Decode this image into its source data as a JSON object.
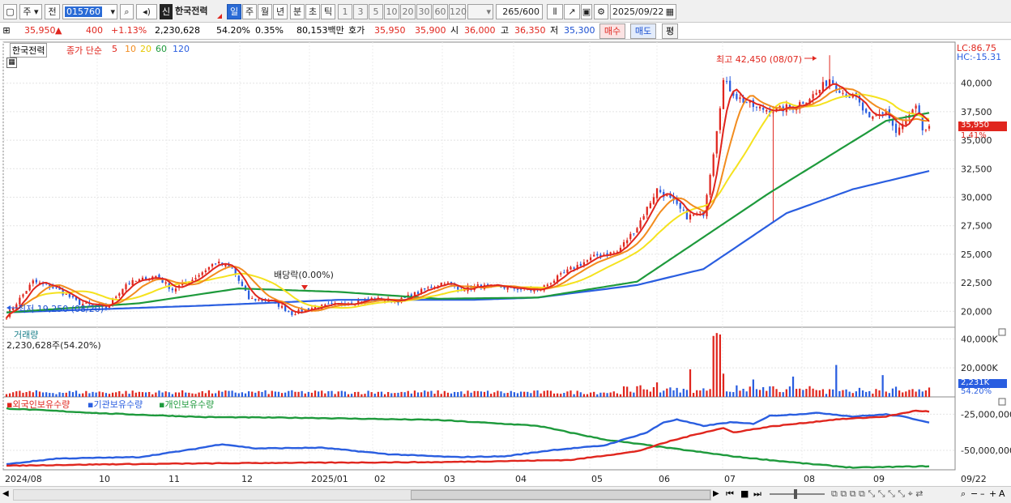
{
  "toolbar": {
    "market_type": "주",
    "prev_label": "전",
    "stock_code": "015760",
    "badge": "신",
    "stock_name": "한국전력",
    "period_buttons": [
      "일",
      "주",
      "월",
      "년",
      "분",
      "초",
      "틱"
    ],
    "interval_buttons": [
      "1",
      "3",
      "5",
      "10",
      "20",
      "30",
      "60",
      "120"
    ],
    "count": "265",
    "count_total": "/600",
    "date": "2025/09/22"
  },
  "quote": {
    "price": "35,950",
    "change": "400",
    "change_pct": "+1.13%",
    "volume": "2,230,628",
    "volume_ratio": "54.20%",
    "turnover": "0.35%",
    "amount": "80,153백만",
    "ask_label": "호가",
    "ask": "35,950",
    "bid": "35,900",
    "open_label": "시",
    "open": "36,000",
    "high_label": "고",
    "high": "36,350",
    "low_label": "저",
    "low": "35,300",
    "buy_button": "매수",
    "sell_button": "매도",
    "avg_button": "평"
  },
  "chart": {
    "legend_name": "한국전력",
    "legend_ma": "종가 단순",
    "ma_periods": [
      "5",
      "10",
      "20",
      "60",
      "120"
    ],
    "lc_label": "LC:86.75",
    "hc_label": "HC:-15.31",
    "current_price_tag": "35,950",
    "current_pct_tag": "1.41%",
    "max_annotation": "최고 42,450 (08/07)",
    "min_annotation": "최저 19,250 (08/20)",
    "dividend_annotation": "배당락(0.00%)",
    "volume_title": "거래량",
    "volume_info": "2,230,628주(54.20%)",
    "volume_tag": "2,231K",
    "volume_pct_tag": "54.20%",
    "holding_legend": [
      "외국인보유수량",
      "기관보유수량",
      "개인보유수량"
    ],
    "colors": {
      "ma5": "#e0261e",
      "ma10": "#f28c1e",
      "ma20": "#f5e21e",
      "ma60": "#1e9a3c",
      "ma120": "#2a5ee0",
      "up": "#e0261e",
      "down": "#2a5ee0"
    }
  },
  "chart_data": {
    "type": "line",
    "price_axis_ticks": [
      "40,000",
      "37,500",
      "35,000",
      "32,500",
      "30,000",
      "27,500",
      "25,000",
      "22,500",
      "20,000"
    ],
    "price_ylim": [
      18600,
      43600
    ],
    "volume_axis_ticks": [
      "40,000K",
      "20,000K"
    ],
    "volume_ylim": [
      0,
      48000
    ],
    "holding_axis_ticks": [
      "-25,000,000",
      "-50,000,000"
    ],
    "x_labels": [
      "2024/08",
      "10",
      "11",
      "12",
      "2025/01",
      "02",
      "03",
      "04",
      "05",
      "06",
      "07",
      "08",
      "09",
      "09/22"
    ],
    "close_anchors": [
      [
        0,
        19600
      ],
      [
        8,
        22600
      ],
      [
        15,
        22000
      ],
      [
        22,
        20700
      ],
      [
        30,
        20300
      ],
      [
        36,
        22400
      ],
      [
        45,
        23100
      ],
      [
        50,
        21900
      ],
      [
        56,
        22800
      ],
      [
        63,
        24300
      ],
      [
        68,
        23700
      ],
      [
        73,
        21100
      ],
      [
        80,
        20900
      ],
      [
        86,
        19800
      ],
      [
        92,
        20300
      ],
      [
        100,
        20600
      ],
      [
        110,
        21100
      ],
      [
        118,
        20900
      ],
      [
        126,
        21900
      ],
      [
        132,
        22600
      ],
      [
        136,
        21900
      ],
      [
        142,
        22200
      ],
      [
        150,
        22100
      ],
      [
        160,
        21800
      ],
      [
        170,
        23700
      ],
      [
        178,
        24900
      ],
      [
        184,
        25200
      ],
      [
        190,
        27400
      ],
      [
        196,
        30700
      ],
      [
        200,
        29800
      ],
      [
        205,
        28300
      ],
      [
        210,
        28600
      ],
      [
        213,
        34000
      ],
      [
        216,
        40200
      ],
      [
        220,
        38800
      ],
      [
        226,
        37800
      ],
      [
        232,
        37600
      ],
      [
        238,
        38100
      ],
      [
        244,
        39100
      ],
      [
        248,
        40400
      ],
      [
        252,
        39200
      ],
      [
        256,
        38600
      ],
      [
        260,
        36700
      ],
      [
        265,
        37600
      ],
      [
        268,
        35600
      ],
      [
        271,
        36700
      ],
      [
        274,
        37800
      ],
      [
        276,
        35900
      ],
      [
        278,
        35950
      ]
    ],
    "ma60_anchors": [
      [
        0,
        19900
      ],
      [
        40,
        20700
      ],
      [
        70,
        22000
      ],
      [
        100,
        21700
      ],
      [
        130,
        21100
      ],
      [
        160,
        21200
      ],
      [
        190,
        22600
      ],
      [
        210,
        26500
      ],
      [
        230,
        30400
      ],
      [
        250,
        34000
      ],
      [
        265,
        36700
      ],
      [
        278,
        37400
      ]
    ],
    "ma120_anchors": [
      [
        0,
        19900
      ],
      [
        60,
        20500
      ],
      [
        100,
        21000
      ],
      [
        140,
        21000
      ],
      [
        160,
        21200
      ],
      [
        190,
        22300
      ],
      [
        210,
        23700
      ],
      [
        235,
        28600
      ],
      [
        255,
        30700
      ],
      [
        278,
        32300
      ]
    ],
    "volume_spikes": [
      [
        213,
        42000
      ],
      [
        214,
        44000
      ],
      [
        215,
        43000
      ],
      [
        216,
        16000
      ],
      [
        206,
        19000
      ],
      [
        250,
        22000
      ],
      [
        237,
        14000
      ],
      [
        225,
        12000
      ],
      [
        264,
        15000
      ],
      [
        196,
        10000
      ],
      [
        191,
        8000
      ]
    ],
    "foreign_anchors": [
      [
        0,
        -60700
      ],
      [
        30,
        -59700
      ],
      [
        80,
        -58700
      ],
      [
        130,
        -58200
      ],
      [
        170,
        -56700
      ],
      [
        190,
        -50700
      ],
      [
        200,
        -43600
      ],
      [
        210,
        -37600
      ],
      [
        216,
        -34600
      ],
      [
        219,
        -37600
      ],
      [
        230,
        -33600
      ],
      [
        250,
        -28600
      ],
      [
        265,
        -26600
      ],
      [
        274,
        -22600
      ],
      [
        278,
        -23100
      ]
    ],
    "institution_anchors": [
      [
        0,
        -59700
      ],
      [
        15,
        -55700
      ],
      [
        40,
        -54700
      ],
      [
        55,
        -49700
      ],
      [
        65,
        -45700
      ],
      [
        75,
        -48700
      ],
      [
        95,
        -48200
      ],
      [
        115,
        -52700
      ],
      [
        135,
        -54700
      ],
      [
        150,
        -54200
      ],
      [
        165,
        -49700
      ],
      [
        180,
        -46700
      ],
      [
        193,
        -37600
      ],
      [
        198,
        -30600
      ],
      [
        202,
        -28700
      ],
      [
        210,
        -33100
      ],
      [
        218,
        -30600
      ],
      [
        225,
        -31600
      ],
      [
        230,
        -26100
      ],
      [
        245,
        -24100
      ],
      [
        255,
        -26600
      ],
      [
        265,
        -25100
      ],
      [
        270,
        -26600
      ],
      [
        278,
        -30600
      ]
    ],
    "individual_anchors": [
      [
        0,
        -21000
      ],
      [
        30,
        -24500
      ],
      [
        60,
        -27000
      ],
      [
        90,
        -27500
      ],
      [
        130,
        -29000
      ],
      [
        160,
        -33000
      ],
      [
        180,
        -42500
      ],
      [
        200,
        -48500
      ],
      [
        220,
        -54500
      ],
      [
        240,
        -59000
      ],
      [
        255,
        -62000
      ],
      [
        278,
        -61000
      ]
    ]
  }
}
